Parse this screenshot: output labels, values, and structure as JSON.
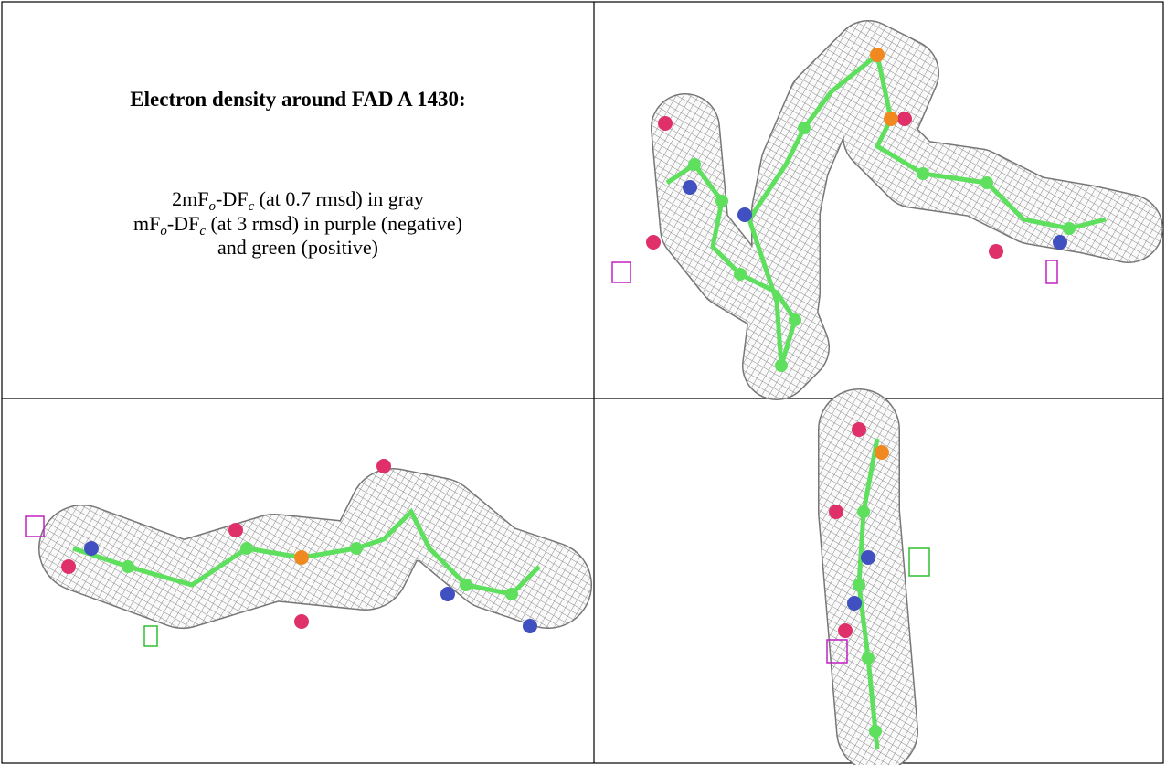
{
  "caption": {
    "title": "Electron density around FAD A 1430:",
    "lines": [
      [
        "2mF",
        "o",
        "-DF",
        "c",
        " (at 0.7 rmsd) in gray"
      ],
      [
        "mF",
        "o",
        "-DF",
        "c",
        " (at 3 rmsd) in purple (negative)"
      ],
      [
        "and green (positive)"
      ]
    ]
  }
}
